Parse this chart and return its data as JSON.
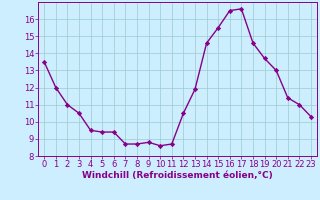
{
  "x": [
    0,
    1,
    2,
    3,
    4,
    5,
    6,
    7,
    8,
    9,
    10,
    11,
    12,
    13,
    14,
    15,
    16,
    17,
    18,
    19,
    20,
    21,
    22,
    23
  ],
  "y": [
    13.5,
    12.0,
    11.0,
    10.5,
    9.5,
    9.4,
    9.4,
    8.7,
    8.7,
    8.8,
    8.6,
    8.7,
    10.5,
    11.9,
    14.6,
    15.5,
    16.5,
    16.6,
    14.6,
    13.7,
    13.0,
    11.4,
    11.0,
    10.3
  ],
  "line_color": "#880088",
  "marker": "D",
  "marker_size": 2.2,
  "bg_color": "#cceeff",
  "grid_color": "#99cccc",
  "xlabel": "Windchill (Refroidissement éolien,°C)",
  "xlim": [
    -0.5,
    23.5
  ],
  "ylim": [
    8,
    17
  ],
  "yticks": [
    8,
    9,
    10,
    11,
    12,
    13,
    14,
    15,
    16
  ],
  "xticks": [
    0,
    1,
    2,
    3,
    4,
    5,
    6,
    7,
    8,
    9,
    10,
    11,
    12,
    13,
    14,
    15,
    16,
    17,
    18,
    19,
    20,
    21,
    22,
    23
  ],
  "tick_color": "#880088",
  "font_size": 6.0,
  "xlabel_fontsize": 6.5,
  "line_width": 1.0
}
